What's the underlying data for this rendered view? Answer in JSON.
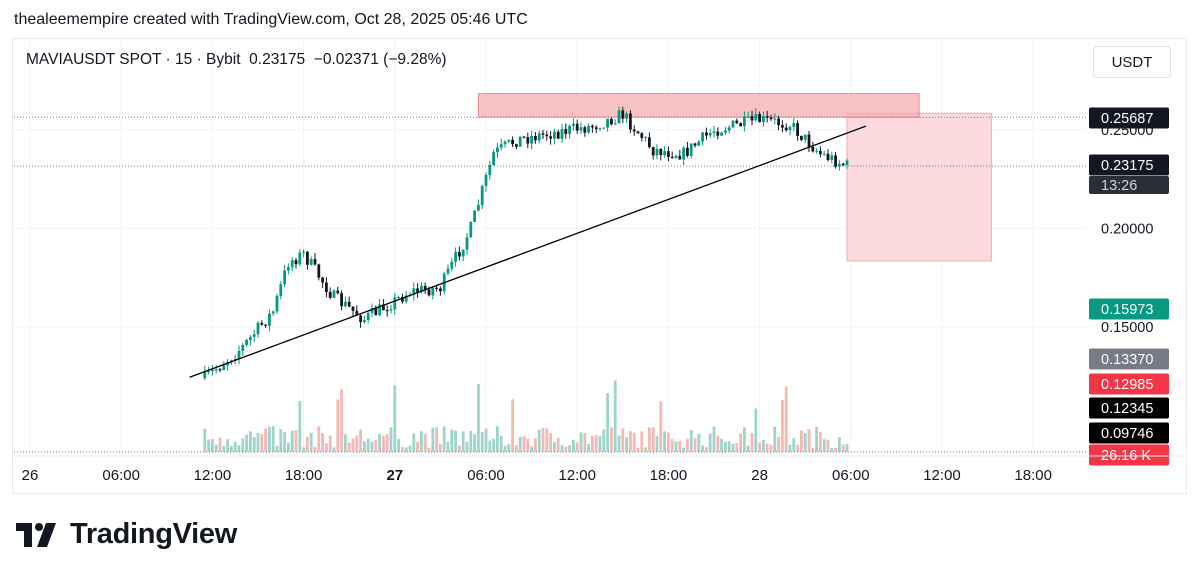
{
  "caption": "thealeemempire created with TradingView.com, Oct 28, 2025 05:46 UTC",
  "symbol": {
    "name": "MAVIAUSDT SPOT",
    "interval": "15",
    "exchange": "Bybit",
    "price": "0.23175",
    "change": "−0.02371 (−9.28%)"
  },
  "currency_button": "USDT",
  "price_axis": {
    "labels": [
      "0.25000",
      "0.20000",
      "0.15000"
    ],
    "tags": [
      {
        "text": "0.25687",
        "bg": "#131722",
        "fg": "#ffffff"
      },
      {
        "text": "0.23175",
        "bg": "#131722",
        "fg": "#ffffff"
      },
      {
        "text": "13:26",
        "bg": "#2a2e39",
        "fg": "#d1d4dc"
      },
      {
        "text": "0.15973",
        "bg": "#089981",
        "fg": "#ffffff"
      },
      {
        "text": "0.13370",
        "bg": "#787b86",
        "fg": "#ffffff"
      },
      {
        "text": "0.12985",
        "bg": "#f23645",
        "fg": "#ffffff"
      },
      {
        "text": "0.12345",
        "bg": "#000000",
        "fg": "#ffffff"
      },
      {
        "text": "0.09746",
        "bg": "#000000",
        "fg": "#ffffff"
      },
      {
        "text": "26.16 K",
        "bg": "#f23645",
        "fg": "#ffffff"
      }
    ]
  },
  "time_axis": {
    "labels": [
      "26",
      "06:00",
      "12:00",
      "18:00",
      "27",
      "06:00",
      "12:00",
      "18:00",
      "28",
      "06:00",
      "12:00",
      "18:00"
    ],
    "bold": [
      false,
      false,
      false,
      false,
      true,
      false,
      false,
      false,
      false,
      false,
      false,
      false
    ]
  },
  "brand": "TradingView",
  "colors": {
    "up": "#089981",
    "down": "#131722",
    "volume_up": "#9ed5cb",
    "volume_down": "#f5b8b4",
    "resistance_zone": "#f7a8ad",
    "target_zone": "#fbd3d7"
  },
  "chart_data": {
    "type": "candlestick",
    "symbol": "MAVIAUSDT",
    "interval_minutes": 15,
    "x_range": [
      "2025-10-26 00:00",
      "2025-10-28 18:00"
    ],
    "ylim": [
      0.1,
      0.27
    ],
    "last_price": 0.23175,
    "change": -0.02371,
    "change_pct": -9.28,
    "marked_levels": [
      0.25687,
      0.23175,
      0.15973,
      0.1337,
      0.12985,
      0.12345,
      0.09746
    ],
    "price_path": [
      {
        "t": "2025-10-26 11:30",
        "price": 0.124
      },
      {
        "t": "2025-10-26 14:00",
        "price": 0.14
      },
      {
        "t": "2025-10-26 16:00",
        "price": 0.158
      },
      {
        "t": "2025-10-26 17:00",
        "price": 0.183
      },
      {
        "t": "2025-10-26 18:00",
        "price": 0.187
      },
      {
        "t": "2025-10-26 20:00",
        "price": 0.165
      },
      {
        "t": "2025-10-26 22:00",
        "price": 0.154
      },
      {
        "t": "2025-10-27 01:00",
        "price": 0.168
      },
      {
        "t": "2025-10-27 03:00",
        "price": 0.17
      },
      {
        "t": "2025-10-27 05:00",
        "price": 0.2
      },
      {
        "t": "2025-10-27 06:30",
        "price": 0.238
      },
      {
        "t": "2025-10-27 08:00",
        "price": 0.245
      },
      {
        "t": "2025-10-27 10:00",
        "price": 0.248
      },
      {
        "t": "2025-10-27 13:00",
        "price": 0.252
      },
      {
        "t": "2025-10-27 15:00",
        "price": 0.258
      },
      {
        "t": "2025-10-27 17:00",
        "price": 0.24
      },
      {
        "t": "2025-10-27 19:00",
        "price": 0.238
      },
      {
        "t": "2025-10-27 21:00",
        "price": 0.25
      },
      {
        "t": "2025-10-28 00:00",
        "price": 0.255
      },
      {
        "t": "2025-10-28 02:00",
        "price": 0.253
      },
      {
        "t": "2025-10-28 04:00",
        "price": 0.238
      },
      {
        "t": "2025-10-28 05:46",
        "price": 0.23175
      }
    ],
    "drawings": {
      "resistance_zone": {
        "price_from": 0.2565,
        "price_to": 0.2685,
        "time_from": "2025-10-27 05:30",
        "time_to": "2025-10-28 10:30"
      },
      "target_zone": {
        "price_from": 0.1835,
        "price_to": 0.2585,
        "time_from": "2025-10-28 05:45",
        "time_to": "2025-10-28 15:15"
      },
      "trendline": {
        "from": {
          "t": "2025-10-26 10:30",
          "price": 0.1245
        },
        "to": {
          "t": "2025-10-28 07:00",
          "price": 0.252
        }
      }
    }
  }
}
